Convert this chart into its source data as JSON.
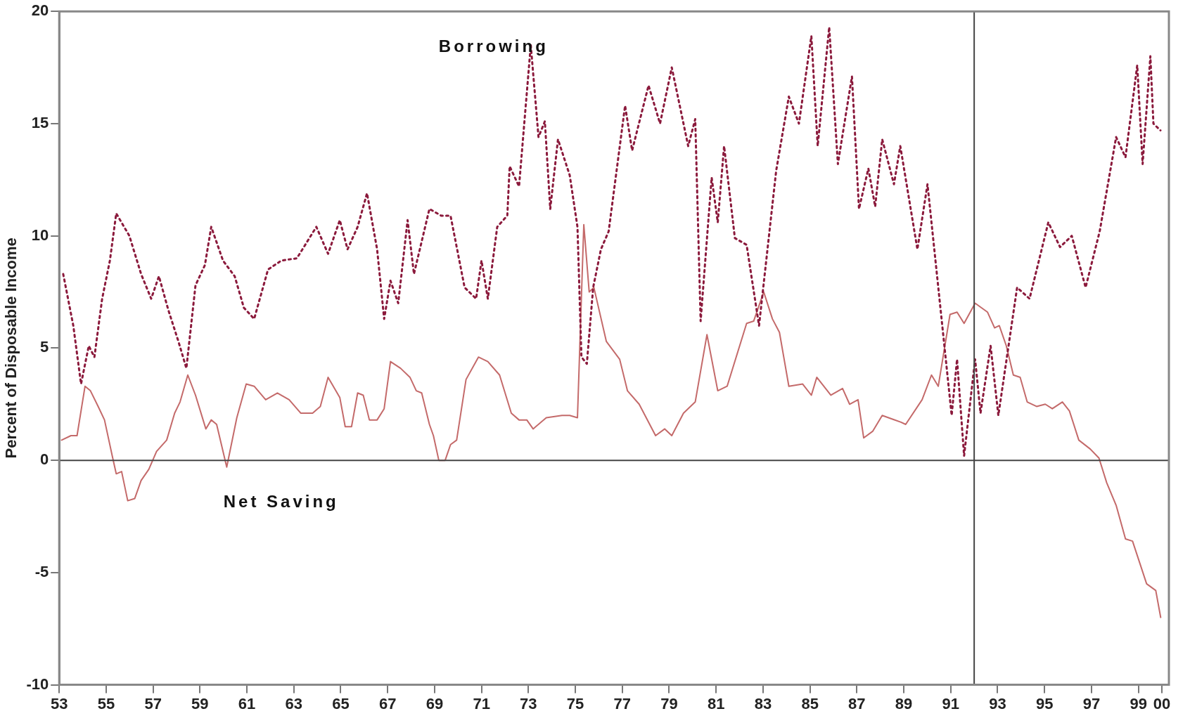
{
  "chart_data": {
    "type": "line",
    "ylabel": "Percent of Disposable Income",
    "xlim": [
      1953,
      2000.3
    ],
    "xticks": [
      {
        "value": 1953,
        "label": "53"
      },
      {
        "value": 1955,
        "label": "55"
      },
      {
        "value": 1957,
        "label": "57"
      },
      {
        "value": 1959,
        "label": "59"
      },
      {
        "value": 1961,
        "label": "61"
      },
      {
        "value": 1963,
        "label": "63"
      },
      {
        "value": 1965,
        "label": "65"
      },
      {
        "value": 1967,
        "label": "67"
      },
      {
        "value": 1969,
        "label": "69"
      },
      {
        "value": 1971,
        "label": "71"
      },
      {
        "value": 1973,
        "label": "73"
      },
      {
        "value": 1975,
        "label": "75"
      },
      {
        "value": 1977,
        "label": "77"
      },
      {
        "value": 1979,
        "label": "79"
      },
      {
        "value": 1981,
        "label": "81"
      },
      {
        "value": 1983,
        "label": "83"
      },
      {
        "value": 1985,
        "label": "85"
      },
      {
        "value": 1987,
        "label": "87"
      },
      {
        "value": 1989,
        "label": "89"
      },
      {
        "value": 1991,
        "label": "91"
      },
      {
        "value": 1993,
        "label": "93"
      },
      {
        "value": 1995,
        "label": "95"
      },
      {
        "value": 1997,
        "label": "97"
      },
      {
        "value": 1999,
        "label": "99"
      },
      {
        "value": 2000,
        "label": "00"
      }
    ],
    "ylim": [
      -10,
      20
    ],
    "yticks": [
      -10,
      -5,
      0,
      5,
      10,
      15,
      20
    ],
    "grid": false,
    "legend": false,
    "ref_lines": [
      {
        "axis": "y",
        "value": 0,
        "color": "#444444"
      },
      {
        "axis": "x",
        "value": 1992,
        "color": "#444444"
      }
    ],
    "series": [
      {
        "name": "Borrowing",
        "color": "#8b1a3c",
        "line_style": "dotted",
        "x": [
          1953.17,
          1953.6,
          1953.93,
          1954.26,
          1954.5,
          1954.83,
          1955.16,
          1955.43,
          1955.99,
          1956.49,
          1956.92,
          1957.25,
          1957.65,
          1958.08,
          1958.42,
          1958.81,
          1959.21,
          1959.48,
          1959.98,
          1960.48,
          1960.87,
          1961.31,
          1961.9,
          1962.47,
          1963.13,
          1963.96,
          1964.46,
          1964.96,
          1965.29,
          1965.72,
          1966.12,
          1966.55,
          1966.85,
          1967.12,
          1967.45,
          1967.85,
          1968.12,
          1968.78,
          1969.28,
          1969.68,
          1970.28,
          1970.77,
          1971.0,
          1971.27,
          1971.67,
          1972.1,
          1972.2,
          1972.6,
          1973.1,
          1973.43,
          1973.7,
          1973.93,
          1974.26,
          1974.76,
          1975.09,
          1975.26,
          1975.49,
          1975.76,
          1976.09,
          1976.42,
          1977.12,
          1977.42,
          1978.12,
          1978.61,
          1979.11,
          1979.81,
          1980.11,
          1980.34,
          1980.81,
          1981.07,
          1981.34,
          1981.8,
          1982.3,
          1982.83,
          1983.56,
          1984.1,
          1984.53,
          1985.06,
          1985.33,
          1985.82,
          1986.19,
          1986.79,
          1987.09,
          1987.49,
          1987.78,
          1988.08,
          1988.58,
          1988.85,
          1989.58,
          1990.01,
          1990.51,
          1991.04,
          1991.27,
          1991.57,
          1992.04,
          1992.27,
          1992.7,
          1993.03,
          1993.83,
          1994.36,
          1995.16,
          1995.66,
          1996.16,
          1996.75,
          1997.35,
          1998.05,
          1998.45,
          1998.95,
          1999.18,
          1999.51,
          1999.64,
          1999.94
        ],
        "values": [
          8.3,
          6.0,
          3.4,
          5.1,
          4.6,
          7.2,
          8.9,
          11.0,
          10.0,
          8.3,
          7.2,
          8.2,
          6.7,
          5.3,
          4.1,
          7.8,
          8.7,
          10.4,
          8.9,
          8.2,
          6.8,
          6.3,
          8.5,
          8.9,
          9.0,
          10.4,
          9.2,
          10.7,
          9.4,
          10.4,
          11.9,
          9.4,
          6.3,
          8.0,
          7.0,
          10.7,
          8.3,
          11.2,
          10.9,
          10.9,
          7.7,
          7.2,
          8.9,
          7.2,
          10.4,
          10.9,
          13.1,
          12.2,
          18.5,
          14.4,
          15.1,
          11.2,
          14.3,
          12.7,
          10.4,
          4.6,
          4.3,
          7.7,
          9.4,
          10.2,
          15.8,
          13.8,
          16.7,
          15.0,
          17.5,
          14.0,
          15.2,
          6.2,
          12.6,
          10.6,
          14.0,
          9.9,
          9.6,
          6.0,
          12.9,
          16.2,
          15.0,
          18.9,
          14.0,
          19.3,
          13.2,
          17.1,
          11.2,
          13.0,
          11.3,
          14.3,
          12.3,
          14.0,
          9.4,
          12.3,
          7.3,
          2.0,
          4.5,
          0.2,
          4.5,
          2.1,
          5.1,
          2.0,
          7.7,
          7.2,
          10.6,
          9.5,
          10.0,
          7.7,
          10.2,
          14.4,
          13.5,
          17.6,
          13.2,
          18.0,
          15.0,
          14.7
        ]
      },
      {
        "name": "Net Saving",
        "color": "#c46a6a",
        "line_style": "solid",
        "x": [
          1953.1,
          1953.5,
          1953.76,
          1954.1,
          1954.33,
          1954.66,
          1954.93,
          1955.26,
          1955.43,
          1955.66,
          1955.92,
          1956.22,
          1956.49,
          1956.82,
          1957.15,
          1957.58,
          1957.92,
          1958.15,
          1958.48,
          1958.81,
          1959.25,
          1959.48,
          1959.71,
          1960.14,
          1960.57,
          1960.97,
          1961.31,
          1961.8,
          1962.3,
          1962.8,
          1963.3,
          1963.8,
          1964.13,
          1964.46,
          1964.96,
          1965.19,
          1965.46,
          1965.72,
          1965.96,
          1966.22,
          1966.55,
          1966.85,
          1967.12,
          1967.55,
          1967.95,
          1968.22,
          1968.45,
          1968.78,
          1968.95,
          1969.18,
          1969.45,
          1969.68,
          1969.94,
          1970.34,
          1970.87,
          1971.27,
          1971.77,
          1972.27,
          1972.6,
          1972.93,
          1973.2,
          1973.76,
          1974.43,
          1974.76,
          1975.09,
          1975.36,
          1975.59,
          1975.79,
          1976.32,
          1976.89,
          1977.22,
          1977.72,
          1978.42,
          1978.81,
          1979.11,
          1979.61,
          1980.11,
          1980.61,
          1981.07,
          1981.47,
          1982.3,
          1982.6,
          1983.03,
          1983.4,
          1983.7,
          1984.1,
          1984.69,
          1985.06,
          1985.29,
          1985.89,
          1986.39,
          1986.69,
          1987.05,
          1987.29,
          1987.68,
          1988.08,
          1988.88,
          1989.08,
          1989.78,
          1990.18,
          1990.47,
          1990.97,
          1991.27,
          1991.57,
          1992.04,
          1992.57,
          1992.87,
          1993.07,
          1993.37,
          1993.67,
          1993.96,
          1994.26,
          1994.66,
          1995.03,
          1995.33,
          1995.76,
          1996.06,
          1996.46,
          1996.95,
          1997.32,
          1997.65,
          1998.05,
          1998.45,
          1998.75,
          1999.35,
          1999.74,
          1999.95
        ],
        "values": [
          0.9,
          1.1,
          1.1,
          3.3,
          3.1,
          2.4,
          1.8,
          0.2,
          -0.6,
          -0.5,
          -1.8,
          -1.7,
          -0.9,
          -0.4,
          0.4,
          0.9,
          2.1,
          2.6,
          3.8,
          2.9,
          1.4,
          1.8,
          1.6,
          -0.3,
          1.9,
          3.4,
          3.3,
          2.7,
          3.0,
          2.7,
          2.1,
          2.1,
          2.4,
          3.7,
          2.8,
          1.5,
          1.5,
          3.0,
          2.9,
          1.8,
          1.8,
          2.3,
          4.4,
          4.1,
          3.7,
          3.1,
          3.0,
          1.6,
          1.1,
          0,
          0,
          0.7,
          0.9,
          3.6,
          4.6,
          4.4,
          3.8,
          2.1,
          1.8,
          1.8,
          1.4,
          1.9,
          2.0,
          2.0,
          1.9,
          10.5,
          7.5,
          7.7,
          5.3,
          4.5,
          3.1,
          2.5,
          1.1,
          1.4,
          1.1,
          2.1,
          2.6,
          5.6,
          3.1,
          3.3,
          6.1,
          6.2,
          7.5,
          6.3,
          5.7,
          3.3,
          3.4,
          2.9,
          3.7,
          2.9,
          3.2,
          2.5,
          2.7,
          1.0,
          1.3,
          2.0,
          1.7,
          1.6,
          2.7,
          3.8,
          3.3,
          6.5,
          6.6,
          6.1,
          7.0,
          6.6,
          5.9,
          6.0,
          5.1,
          3.8,
          3.7,
          2.6,
          2.4,
          2.5,
          2.3,
          2.6,
          2.2,
          0.9,
          0.5,
          0.1,
          -1.0,
          -2.0,
          -3.5,
          -3.6,
          -5.5,
          -5.8,
          -7.0
        ]
      }
    ]
  }
}
